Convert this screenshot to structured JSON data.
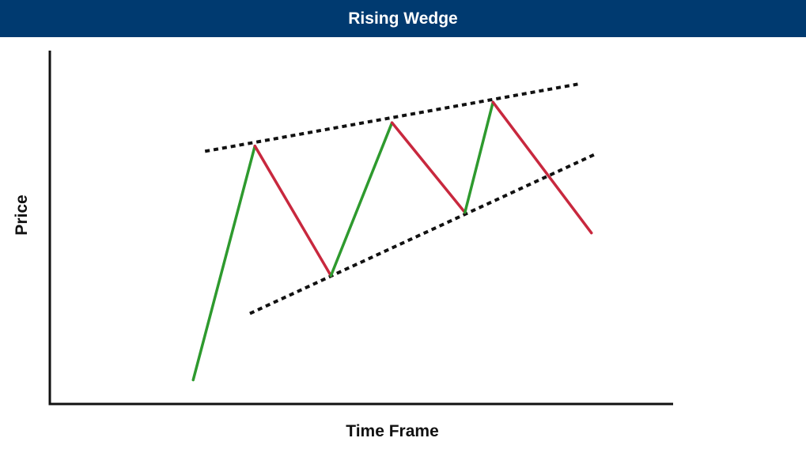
{
  "header": {
    "title": "Rising Wedge"
  },
  "colors": {
    "header_bg": "#003a70",
    "up_segment": "#2e9a2e",
    "down_segment": "#c8283e",
    "trendline": "#111111",
    "axis": "#111111"
  },
  "chart_data": {
    "type": "line",
    "title": "Rising Wedge",
    "xlabel": "Time Frame",
    "ylabel": "Price",
    "xlim": [
      0,
      100
    ],
    "ylim": [
      0,
      100
    ],
    "grid": false,
    "legend": "none",
    "series": [
      {
        "values": [
          {
            "x": 23.0,
            "y": 6.8
          },
          {
            "x": 32.9,
            "y": 73.0
          },
          {
            "x": 45.1,
            "y": 36.3
          },
          {
            "x": 54.9,
            "y": 79.6
          },
          {
            "x": 66.6,
            "y": 54.2
          },
          {
            "x": 71.1,
            "y": 85.4
          },
          {
            "x": 86.9,
            "y": 48.4
          }
        ]
      }
    ],
    "trendlines": [
      {
        "name": "resistance",
        "style": "dotted",
        "from": {
          "x": 24.9,
          "y": 71.5
        },
        "to": {
          "x": 84.7,
          "y": 90.5
        }
      },
      {
        "name": "support",
        "style": "dotted",
        "from": {
          "x": 32.1,
          "y": 25.6
        },
        "to": {
          "x": 87.4,
          "y": 70.6
        }
      }
    ]
  }
}
